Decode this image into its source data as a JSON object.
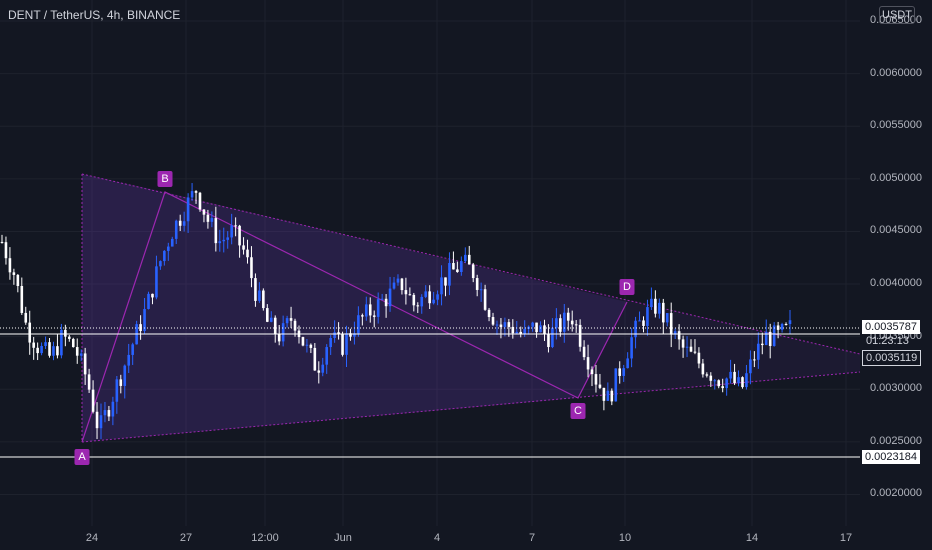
{
  "header": {
    "title": "DENT / TetherUS, 4h, BINANCE"
  },
  "currency": "USDT",
  "price_axis": {
    "ticks": [
      "0.0065000",
      "0.0060000",
      "0.0055000",
      "0.0050000",
      "0.0045000",
      "0.0040000",
      "0.0035000",
      "0.0030000",
      "0.0025000",
      "0.0020000"
    ],
    "current_price": "0.0035787",
    "countdown": "01:23:13",
    "level_1": "0.0035119",
    "level_2": "0.0023184"
  },
  "time_axis": {
    "ticks": [
      "24",
      "27",
      "12:00",
      "Jun",
      "4",
      "7",
      "10",
      "14",
      "17"
    ]
  },
  "pattern_labels": {
    "A": "A",
    "B": "B",
    "C": "C",
    "D": "D"
  },
  "colors": {
    "background": "#131722",
    "up": "#2962ff",
    "down": "#ffffff",
    "pattern": "#9c27b0"
  },
  "chart_data": {
    "type": "candlestick",
    "symbol": "DENT / TetherUS",
    "interval": "4h",
    "exchange": "BINANCE",
    "ylim": [
      0.0017,
      0.0067
    ],
    "pattern_points": [
      {
        "label": "A",
        "price": 0.00242
      },
      {
        "label": "B",
        "price": 0.0049
      },
      {
        "label": "C",
        "price": 0.0029
      },
      {
        "label": "D",
        "price": 0.0038
      }
    ],
    "horizontal_levels": [
      0.0035787,
      0.0035119,
      0.0023184
    ],
    "close_path": [
      0.0044,
      0.0041,
      0.0036,
      0.0034,
      0.0033,
      0.0035,
      0.0034,
      0.0031,
      0.0026,
      0.0029,
      0.0032,
      0.0035,
      0.0038,
      0.0042,
      0.0045,
      0.0047,
      0.0049,
      0.0046,
      0.0044,
      0.0045,
      0.0043,
      0.0039,
      0.0036,
      0.0035,
      0.0037,
      0.0034,
      0.0032,
      0.0035,
      0.0034,
      0.0036,
      0.0037,
      0.0038,
      0.0039,
      0.004,
      0.0038,
      0.0039,
      0.004,
      0.0041,
      0.0042,
      0.0041,
      0.0038,
      0.0036,
      0.0036,
      0.0035,
      0.0036,
      0.0035,
      0.0036,
      0.0037,
      0.0034,
      0.0031,
      0.0029,
      0.0032,
      0.0035,
      0.0037,
      0.0038,
      0.0036,
      0.0034,
      0.0033,
      0.0032,
      0.0031,
      0.0031,
      0.003,
      0.0033,
      0.0035,
      0.0035,
      0.00358
    ]
  }
}
